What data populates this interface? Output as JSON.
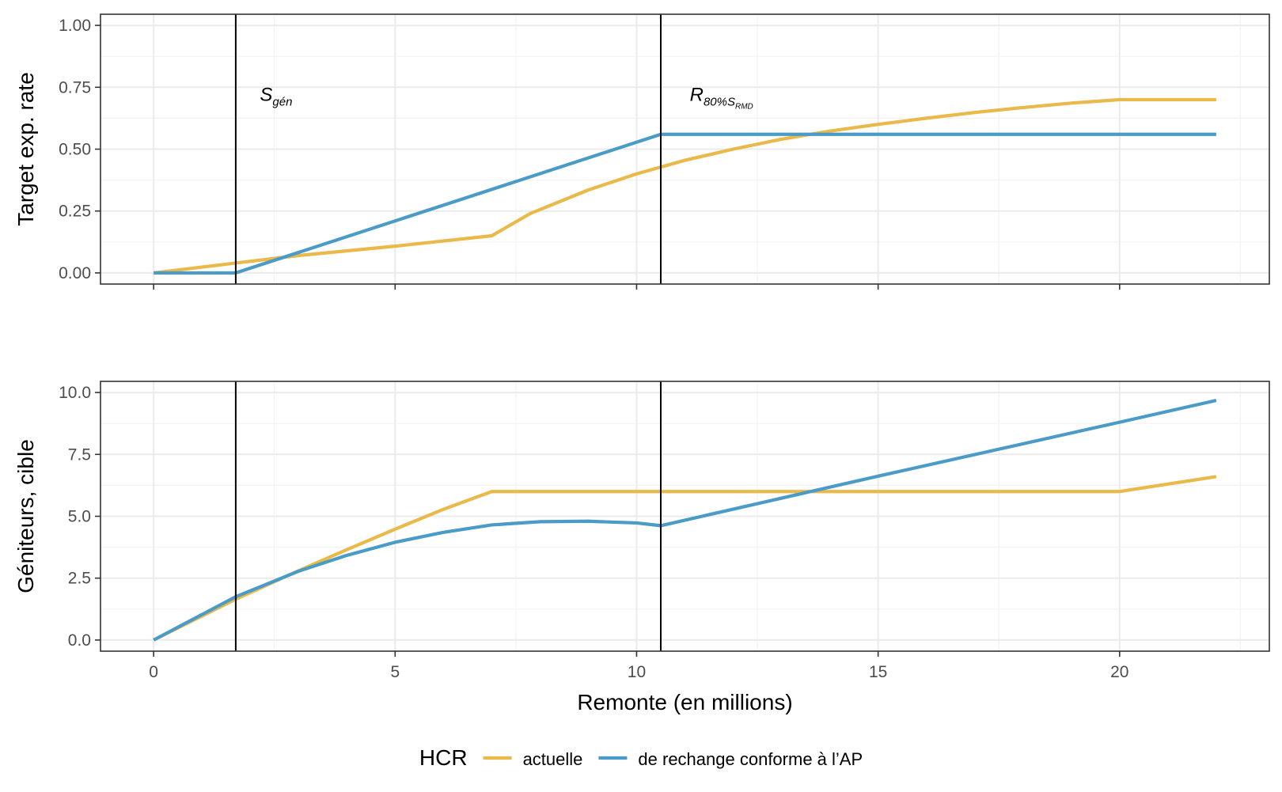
{
  "colors": {
    "actuelle": "#E9B949",
    "rechange": "#4A9BC7",
    "grid_major": "#EBEBEB",
    "grid_minor": "#F3F3F3",
    "vline": "#000000",
    "panel_border": "#333333"
  },
  "chart_data": {
    "type": "line",
    "xlabel": "Remonte (en millions)",
    "xlim": [
      -1.1,
      23.1
    ],
    "x_ticks": [
      0,
      5,
      10,
      15,
      20
    ],
    "x_tick_labels": [
      "0",
      "5",
      "10",
      "15",
      "20"
    ],
    "vlines": [
      1.7,
      10.5
    ],
    "legend": {
      "position": "bottom",
      "title": "HCR",
      "entries": [
        {
          "series": "actuelle",
          "label": "actuelle"
        },
        {
          "series": "rechange",
          "label": "de rechange conforme à l’AP"
        }
      ]
    },
    "panels": [
      {
        "id": "top",
        "ylabel": "Target exp. rate",
        "ylim": [
          -0.045,
          1.045
        ],
        "y_ticks": [
          0,
          0.25,
          0.5,
          0.75,
          1.0
        ],
        "y_tick_labels": [
          "0.00",
          "0.25",
          "0.50",
          "0.75",
          "1.00"
        ],
        "annotations": [
          {
            "name": "sgen",
            "x": 2.2,
            "y": 0.72,
            "main": "S",
            "sub": "gén"
          },
          {
            "name": "r80",
            "x": 11.1,
            "y": 0.72,
            "main": "R",
            "sub": "80%",
            "main2": "S",
            "sub2": "RMD"
          }
        ],
        "series": [
          {
            "name": "actuelle",
            "x": [
              0,
              1.7,
              3,
              5,
              7,
              7.8,
              9,
              10,
              11,
              12,
              13,
              14,
              15,
              16,
              17,
              18,
              19,
              20,
              22
            ],
            "y": [
              0,
              0.04,
              0.07,
              0.108,
              0.15,
              0.24,
              0.335,
              0.4,
              0.455,
              0.5,
              0.54,
              0.573,
              0.6,
              0.625,
              0.648,
              0.668,
              0.686,
              0.7,
              0.7
            ]
          },
          {
            "name": "rechange",
            "x": [
              0,
              1.7,
              10.5,
              22
            ],
            "y": [
              0,
              0,
              0.56,
              0.56
            ]
          }
        ]
      },
      {
        "id": "bottom",
        "ylabel": "Géniteurs, cible",
        "ylim": [
          -0.45,
          10.45
        ],
        "y_ticks": [
          0,
          2.5,
          5,
          7.5,
          10
        ],
        "y_tick_labels": [
          "0.0",
          "2.5",
          "5.0",
          "7.5",
          "10.0"
        ],
        "annotations": [],
        "series": [
          {
            "name": "actuelle",
            "x": [
              0,
              1.7,
              3,
              4,
              5,
              6,
              7,
              20,
              22
            ],
            "y": [
              0,
              1.65,
              2.8,
              3.65,
              4.48,
              5.28,
              6.0,
              6.0,
              6.6
            ]
          },
          {
            "name": "rechange",
            "x": [
              0,
              1.7,
              3,
              4,
              5,
              6,
              7,
              8,
              9,
              10,
              10.5,
              15,
              20,
              22
            ],
            "y": [
              0,
              1.75,
              2.78,
              3.42,
              3.95,
              4.35,
              4.65,
              4.78,
              4.8,
              4.73,
              4.62,
              6.62,
              8.8,
              9.68
            ]
          }
        ]
      }
    ]
  }
}
